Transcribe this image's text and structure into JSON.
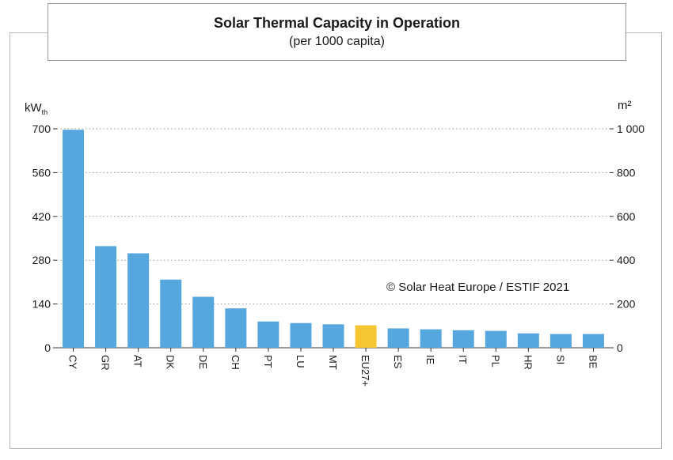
{
  "title": "Solar Thermal Capacity in Operation",
  "subtitle": "(per 1000 capita)",
  "copyright": "© Solar Heat Europe / ESTIF 2021",
  "colors": {
    "bar": "#57a7df",
    "highlight": "#f6c533",
    "grid": "#9a9a9a"
  },
  "chart_data": {
    "type": "bar",
    "title": "Solar Thermal Capacity in Operation",
    "subtitle": "(per 1000 capita)",
    "categories": [
      "CY",
      "GR",
      "AT",
      "DK",
      "DE",
      "CH",
      "PT",
      "LU",
      "MT",
      "EU27+",
      "ES",
      "IE",
      "IT",
      "PL",
      "HR",
      "SI",
      "BE"
    ],
    "values": [
      697,
      325,
      302,
      218,
      163,
      126,
      84,
      79,
      75,
      72,
      62,
      59,
      56,
      54,
      46,
      44,
      44
    ],
    "highlight_category": "EU27+",
    "y_left": {
      "unit_main": "kW",
      "unit_sub": "th",
      "ylim": [
        0,
        700
      ],
      "ticks": [
        0,
        140,
        280,
        420,
        560,
        700
      ]
    },
    "y_right": {
      "unit": "m²",
      "ylim": [
        0,
        1000
      ],
      "ticks": [
        "0",
        "200",
        "400",
        "600",
        "800",
        "1 000"
      ]
    },
    "grid": true
  }
}
